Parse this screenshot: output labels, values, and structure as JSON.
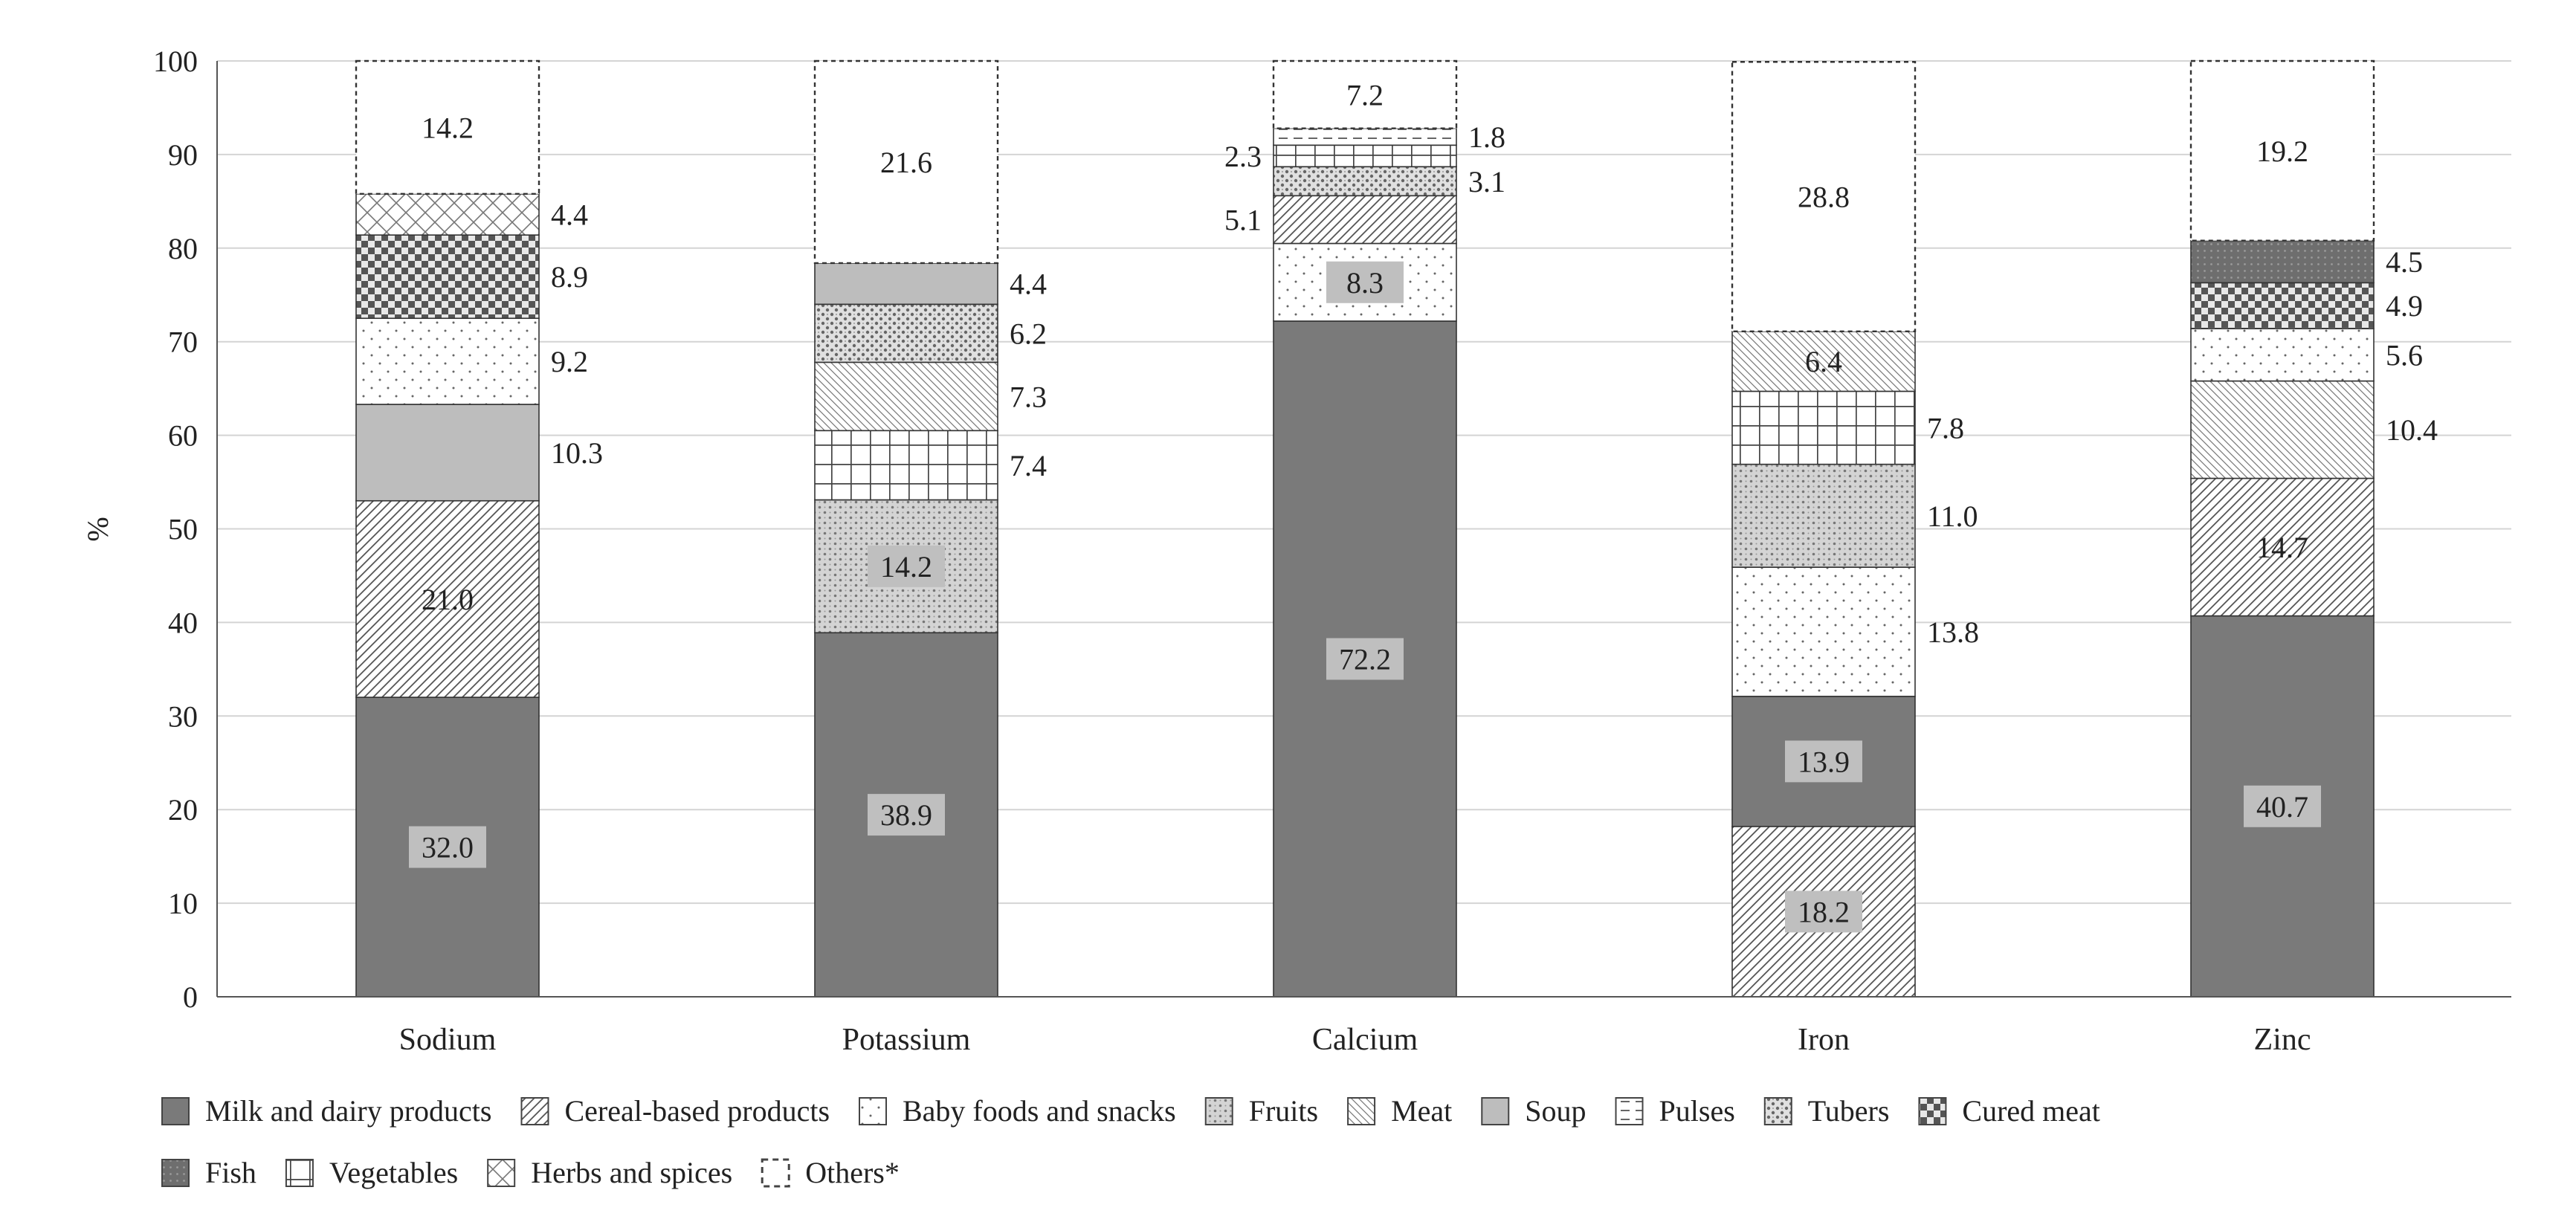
{
  "chart_data": {
    "type": "bar",
    "stacked": true,
    "title": "",
    "xlabel": "",
    "ylabel": "%",
    "ylim": [
      0,
      100
    ],
    "yticks": [
      0,
      10,
      20,
      30,
      40,
      50,
      60,
      70,
      80,
      90,
      100
    ],
    "grid": true,
    "legend_position": "bottom",
    "categories": [
      "Sodium",
      "Potassium",
      "Calcium",
      "Iron",
      "Zinc"
    ],
    "series": [
      {
        "name": "Milk and dairy products",
        "values": [
          32.0,
          38.9,
          72.2,
          13.9,
          40.7
        ]
      },
      {
        "name": "Cereal-based products",
        "values": [
          21.0,
          0,
          5.1,
          18.2,
          14.7
        ]
      },
      {
        "name": "Baby foods and snacks",
        "values": [
          9.2,
          0,
          8.3,
          13.8,
          5.6
        ]
      },
      {
        "name": "Fruits",
        "values": [
          0,
          14.2,
          0,
          11.0,
          0
        ]
      },
      {
        "name": "Meat",
        "values": [
          0,
          7.3,
          0,
          6.4,
          10.4
        ]
      },
      {
        "name": "Soup",
        "values": [
          10.3,
          4.4,
          0,
          0,
          0
        ]
      },
      {
        "name": "Pulses",
        "values": [
          0,
          0,
          1.8,
          0,
          0
        ]
      },
      {
        "name": "Tubers",
        "values": [
          0,
          6.2,
          3.1,
          0,
          0
        ]
      },
      {
        "name": "Cured meat",
        "values": [
          8.9,
          0,
          0,
          0,
          4.9
        ]
      },
      {
        "name": "Fish",
        "values": [
          0,
          0,
          0,
          0,
          4.5
        ]
      },
      {
        "name": "Vegetables",
        "values": [
          0,
          7.4,
          2.3,
          7.8,
          0
        ]
      },
      {
        "name": "Herbs and spices",
        "values": [
          4.4,
          0,
          0,
          0,
          0
        ]
      },
      {
        "name": "Others*",
        "values": [
          14.2,
          21.6,
          7.2,
          28.8,
          19.2
        ]
      }
    ],
    "stacks": [
      {
        "category": "Sodium",
        "segments": [
          {
            "series": "Milk and dairy products",
            "value": 32.0,
            "label": "32.0",
            "label_pos": "inside-box"
          },
          {
            "series": "Cereal-based products",
            "value": 21.0,
            "label": "21.0",
            "label_pos": "inside"
          },
          {
            "series": "Soup",
            "value": 10.3,
            "label": "10.3",
            "label_pos": "right"
          },
          {
            "series": "Baby foods and snacks",
            "value": 9.2,
            "label": "9.2",
            "label_pos": "right"
          },
          {
            "series": "Cured meat",
            "value": 8.9,
            "label": "8.9",
            "label_pos": "right"
          },
          {
            "series": "Herbs and spices",
            "value": 4.4,
            "label": "4.4",
            "label_pos": "right"
          },
          {
            "series": "Others*",
            "value": 14.2,
            "label": "14.2",
            "label_pos": "inside"
          }
        ]
      },
      {
        "category": "Potassium",
        "segments": [
          {
            "series": "Milk and dairy products",
            "value": 38.9,
            "label": "38.9",
            "label_pos": "inside-box"
          },
          {
            "series": "Fruits",
            "value": 14.2,
            "label": "14.2",
            "label_pos": "inside-box"
          },
          {
            "series": "Vegetables",
            "value": 7.4,
            "label": "7.4",
            "label_pos": "right"
          },
          {
            "series": "Meat",
            "value": 7.3,
            "label": "7.3",
            "label_pos": "right"
          },
          {
            "series": "Tubers",
            "value": 6.2,
            "label": "6.2",
            "label_pos": "right"
          },
          {
            "series": "Soup",
            "value": 4.4,
            "label": "4.4",
            "label_pos": "right"
          },
          {
            "series": "Others*",
            "value": 21.6,
            "label": "21.6",
            "label_pos": "inside"
          }
        ]
      },
      {
        "category": "Calcium",
        "segments": [
          {
            "series": "Milk and dairy products",
            "value": 72.2,
            "label": "72.2",
            "label_pos": "inside-box"
          },
          {
            "series": "Baby foods and snacks",
            "value": 8.3,
            "label": "8.3",
            "label_pos": "inside-box"
          },
          {
            "series": "Cereal-based products",
            "value": 5.1,
            "label": "5.1",
            "label_pos": "left"
          },
          {
            "series": "Tubers",
            "value": 3.1,
            "label": "3.1",
            "label_pos": "right"
          },
          {
            "series": "Vegetables",
            "value": 2.3,
            "label": "2.3",
            "label_pos": "left"
          },
          {
            "series": "Pulses",
            "value": 1.8,
            "label": "1.8",
            "label_pos": "right"
          },
          {
            "series": "Others*",
            "value": 7.2,
            "label": "7.2",
            "label_pos": "inside"
          }
        ]
      },
      {
        "category": "Iron",
        "segments": [
          {
            "series": "Cereal-based products",
            "value": 18.2,
            "label": "18.2",
            "label_pos": "inside-box"
          },
          {
            "series": "Milk and dairy products",
            "value": 13.9,
            "label": "13.9",
            "label_pos": "inside-box"
          },
          {
            "series": "Baby foods and snacks",
            "value": 13.8,
            "label": "13.8",
            "label_pos": "right"
          },
          {
            "series": "Fruits",
            "value": 11.0,
            "label": "11.0",
            "label_pos": "right"
          },
          {
            "series": "Vegetables",
            "value": 7.8,
            "label": "7.8",
            "label_pos": "right"
          },
          {
            "series": "Meat",
            "value": 6.4,
            "label": "6.4",
            "label_pos": "inside"
          },
          {
            "series": "Others*",
            "value": 28.8,
            "label": "28.8",
            "label_pos": "inside"
          }
        ]
      },
      {
        "category": "Zinc",
        "segments": [
          {
            "series": "Milk and dairy products",
            "value": 40.7,
            "label": "40.7",
            "label_pos": "inside-box"
          },
          {
            "series": "Cereal-based products",
            "value": 14.7,
            "label": "14.7",
            "label_pos": "inside"
          },
          {
            "series": "Meat",
            "value": 10.4,
            "label": "10.4",
            "label_pos": "right"
          },
          {
            "series": "Baby foods and snacks",
            "value": 5.6,
            "label": "5.6",
            "label_pos": "right"
          },
          {
            "series": "Cured meat",
            "value": 4.9,
            "label": "4.9",
            "label_pos": "right"
          },
          {
            "series": "Fish",
            "value": 4.5,
            "label": "4.5",
            "label_pos": "right"
          },
          {
            "series": "Others*",
            "value": 19.2,
            "label": "19.2",
            "label_pos": "inside"
          }
        ]
      }
    ],
    "legend_rows": [
      [
        "Milk and dairy products",
        "Cereal-based products",
        "Baby foods and snacks",
        "Fruits",
        "Meat",
        "Soup",
        "Pulses",
        "Tubers",
        "Cured meat"
      ],
      [
        "Fish",
        "Vegetables",
        "Herbs and spices",
        "Others*"
      ]
    ],
    "colors": {
      "milk": "#7a7a7a",
      "soup": "#bdbdbd",
      "fish": "#6e6e6e",
      "label_box": "#bfbfbf",
      "grid": "#d4d4d4",
      "axis": "#555555",
      "bar_border": "#333333"
    }
  }
}
